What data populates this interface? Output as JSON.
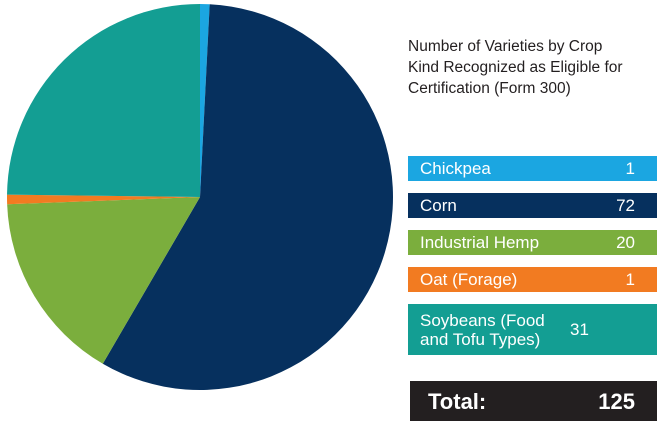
{
  "chart_data": {
    "type": "pie",
    "title": "Number of Varieties by Crop Kind Recognized as Eligible for Certification (Form 300)",
    "categories": [
      "Chickpea",
      "Corn",
      "Industrial Hemp",
      "Oat (Forage)",
      "Soybeans (Food and Tofu Types)"
    ],
    "values": [
      1,
      72,
      20,
      1,
      31
    ],
    "colors": [
      "#1ba6e1",
      "#06305e",
      "#7bae3d",
      "#f27b21",
      "#139e93"
    ],
    "total_label": "Total:",
    "total": 125
  }
}
